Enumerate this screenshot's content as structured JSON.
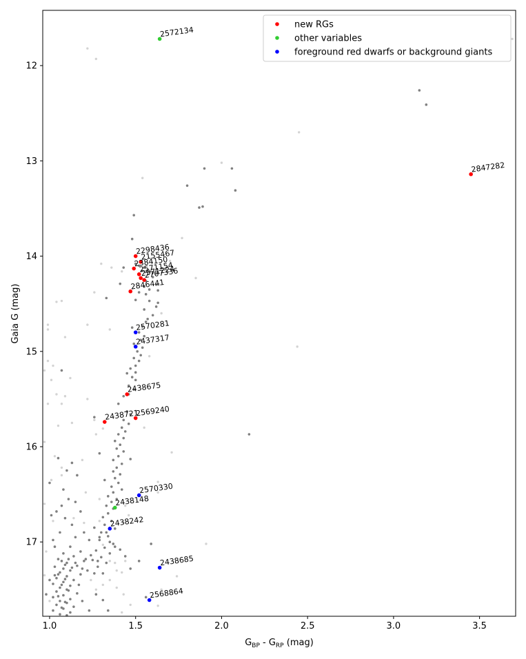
{
  "chart_data": {
    "type": "scatter",
    "xlabel_main": "G",
    "xlabel_sub1": "BP",
    "xlabel_mid": " - G",
    "xlabel_sub2": "RP",
    "xlabel_unit": " (mag)",
    "ylabel": "Gaia G (mag)",
    "xlim": [
      0.96,
      3.71
    ],
    "ylim": [
      17.78,
      11.42
    ],
    "y_inverted": true,
    "x_ticks": [
      "1.0",
      "1.5",
      "2.0",
      "2.5",
      "3.0",
      "3.5"
    ],
    "y_ticks": [
      "12",
      "13",
      "14",
      "15",
      "16",
      "17"
    ],
    "legend": {
      "placement": "top-right",
      "entries": [
        {
          "label": "new RGs",
          "color": "#ff0000"
        },
        {
          "label": "other variables",
          "color": "#32cd32"
        },
        {
          "label": "foreground red dwarfs or background giants",
          "color": "#0000ff"
        }
      ]
    },
    "background": {
      "dark_color": "#808080",
      "light_color": "#d3d3d3",
      "dark_points": [
        [
          3.15,
          12.26
        ],
        [
          3.19,
          12.41
        ],
        [
          1.9,
          13.08
        ],
        [
          2.06,
          13.08
        ],
        [
          1.8,
          13.26
        ],
        [
          2.08,
          13.31
        ],
        [
          1.87,
          13.49
        ],
        [
          1.89,
          13.48
        ],
        [
          1.49,
          13.57
        ],
        [
          1.48,
          13.82
        ],
        [
          1.43,
          14.12
        ],
        [
          1.5,
          14.08
        ],
        [
          1.52,
          14.1
        ],
        [
          1.55,
          14.12
        ],
        [
          1.58,
          14.16
        ],
        [
          1.62,
          14.18
        ],
        [
          1.6,
          14.22
        ],
        [
          1.56,
          14.26
        ],
        [
          1.62,
          14.3
        ],
        [
          1.55,
          14.32
        ],
        [
          1.58,
          14.35
        ],
        [
          1.63,
          14.36
        ],
        [
          1.41,
          14.29
        ],
        [
          1.52,
          14.38
        ],
        [
          1.56,
          14.4
        ],
        [
          1.33,
          14.44
        ],
        [
          1.5,
          14.46
        ],
        [
          1.58,
          14.47
        ],
        [
          1.63,
          14.49
        ],
        [
          1.62,
          14.53
        ],
        [
          1.55,
          14.56
        ],
        [
          1.6,
          14.62
        ],
        [
          1.57,
          14.66
        ],
        [
          1.56,
          14.69
        ],
        [
          1.54,
          14.74
        ],
        [
          1.48,
          14.75
        ],
        [
          1.52,
          14.8
        ],
        [
          1.55,
          14.84
        ],
        [
          1.53,
          14.88
        ],
        [
          1.49,
          14.92
        ],
        [
          1.54,
          14.96
        ],
        [
          1.51,
          15.0
        ],
        [
          1.53,
          15.04
        ],
        [
          1.49,
          15.07
        ],
        [
          1.52,
          15.1
        ],
        [
          1.5,
          15.15
        ],
        [
          1.47,
          15.18
        ],
        [
          1.5,
          15.22
        ],
        [
          1.45,
          15.23
        ],
        [
          1.48,
          15.27
        ],
        [
          1.5,
          15.3
        ],
        [
          1.46,
          15.36
        ],
        [
          1.49,
          15.4
        ],
        [
          1.46,
          15.45
        ],
        [
          1.43,
          15.47
        ],
        [
          1.26,
          15.69
        ],
        [
          1.4,
          15.55
        ],
        [
          1.45,
          15.63
        ],
        [
          1.47,
          15.66
        ],
        [
          1.43,
          15.72
        ],
        [
          1.46,
          15.76
        ],
        [
          1.42,
          15.8
        ],
        [
          1.44,
          15.84
        ],
        [
          1.4,
          15.87
        ],
        [
          1.43,
          15.91
        ],
        [
          1.38,
          15.94
        ],
        [
          1.41,
          15.98
        ],
        [
          1.39,
          16.02
        ],
        [
          1.43,
          16.05
        ],
        [
          1.29,
          16.07
        ],
        [
          1.4,
          16.1
        ],
        [
          1.47,
          16.13
        ],
        [
          1.37,
          16.14
        ],
        [
          1.42,
          16.18
        ],
        [
          1.39,
          16.22
        ],
        [
          1.37,
          16.26
        ],
        [
          1.41,
          16.29
        ],
        [
          1.38,
          16.33
        ],
        [
          1.32,
          16.35
        ],
        [
          1.4,
          16.38
        ],
        [
          1.36,
          16.42
        ],
        [
          1.42,
          16.45
        ],
        [
          1.37,
          16.48
        ],
        [
          1.34,
          16.52
        ],
        [
          1.39,
          16.55
        ],
        [
          1.36,
          16.58
        ],
        [
          1.33,
          16.62
        ],
        [
          1.37,
          16.65
        ],
        [
          1.34,
          16.7
        ],
        [
          1.31,
          16.74
        ],
        [
          1.36,
          16.78
        ],
        [
          1.32,
          16.82
        ],
        [
          1.38,
          16.86
        ],
        [
          1.3,
          16.9
        ],
        [
          1.34,
          16.94
        ],
        [
          1.29,
          16.98
        ],
        [
          1.37,
          17.02
        ],
        [
          1.32,
          17.06
        ],
        [
          1.27,
          17.09
        ],
        [
          1.35,
          17.12
        ],
        [
          1.3,
          17.16
        ],
        [
          1.25,
          17.19
        ],
        [
          1.33,
          17.22
        ],
        [
          1.28,
          17.26
        ],
        [
          1.22,
          17.3
        ],
        [
          1.31,
          17.33
        ],
        [
          1.59,
          17.02
        ],
        [
          1.13,
          16.17
        ],
        [
          1.1,
          16.25
        ],
        [
          1.05,
          16.12
        ],
        [
          1.07,
          15.2
        ],
        [
          1.08,
          16.45
        ],
        [
          1.11,
          16.55
        ],
        [
          1.04,
          16.68
        ],
        [
          1.09,
          16.75
        ],
        [
          1.13,
          16.82
        ],
        [
          1.06,
          16.9
        ],
        [
          2.16,
          15.87
        ],
        [
          1.15,
          16.95
        ],
        [
          1.02,
          16.98
        ],
        [
          1.12,
          17.05
        ],
        [
          1.18,
          17.1
        ],
        [
          1.08,
          17.12
        ],
        [
          1.14,
          17.15
        ],
        [
          1.05,
          17.18
        ],
        [
          1.2,
          17.2
        ],
        [
          1.1,
          17.22
        ],
        [
          1.16,
          17.25
        ],
        [
          1.03,
          17.26
        ],
        [
          1.08,
          17.28
        ],
        [
          1.12,
          17.3
        ],
        [
          1.06,
          17.32
        ],
        [
          1.18,
          17.34
        ],
        [
          1.1,
          17.36
        ],
        [
          1.04,
          17.38
        ],
        [
          1.14,
          17.4
        ],
        [
          1.08,
          17.42
        ],
        [
          1.02,
          17.44
        ],
        [
          1.12,
          17.46
        ],
        [
          1.06,
          17.48
        ],
        [
          1.1,
          17.5
        ],
        [
          1.04,
          17.52
        ],
        [
          1.16,
          17.54
        ],
        [
          1.08,
          17.56
        ],
        [
          1.02,
          17.58
        ],
        [
          1.12,
          17.6
        ],
        [
          1.06,
          17.62
        ],
        [
          1.1,
          17.64
        ],
        [
          1.04,
          17.66
        ],
        [
          1.14,
          17.68
        ],
        [
          1.08,
          17.7
        ],
        [
          1.02,
          17.72
        ],
        [
          1.12,
          17.74
        ],
        [
          1.06,
          17.76
        ],
        [
          1.1,
          17.77
        ],
        [
          1.07,
          17.2
        ],
        [
          1.11,
          17.18
        ],
        [
          1.09,
          17.24
        ],
        [
          1.13,
          17.27
        ],
        [
          1.05,
          17.34
        ],
        [
          1.09,
          17.39
        ],
        [
          1.07,
          17.45
        ],
        [
          1.11,
          17.51
        ],
        [
          1.05,
          17.57
        ],
        [
          1.09,
          17.63
        ],
        [
          1.07,
          17.69
        ],
        [
          1.03,
          17.35
        ],
        [
          1.15,
          17.22
        ],
        [
          1.19,
          17.28
        ],
        [
          1.21,
          17.18
        ],
        [
          1.24,
          17.14
        ],
        [
          1.28,
          17.2
        ],
        [
          1.26,
          17.33
        ],
        [
          1.17,
          17.45
        ],
        [
          1.19,
          17.62
        ],
        [
          1.23,
          17.72
        ],
        [
          1.27,
          17.55
        ],
        [
          1.31,
          17.61
        ],
        [
          1.34,
          17.72
        ],
        [
          1.0,
          17.4
        ],
        [
          0.98,
          17.55
        ],
        [
          1.0,
          16.38
        ],
        [
          1.01,
          16.72
        ],
        [
          1.03,
          17.05
        ],
        [
          1.16,
          16.3
        ],
        [
          1.2,
          16.9
        ],
        [
          1.23,
          16.98
        ],
        [
          1.26,
          16.85
        ],
        [
          1.29,
          16.95
        ],
        [
          1.33,
          16.9
        ],
        [
          1.35,
          17.0
        ],
        [
          1.38,
          17.05
        ],
        [
          1.41,
          17.08
        ],
        [
          1.44,
          17.15
        ],
        [
          1.47,
          17.28
        ],
        [
          1.52,
          17.2
        ],
        [
          1.56,
          17.58
        ],
        [
          1.07,
          16.62
        ],
        [
          1.15,
          16.58
        ],
        [
          1.18,
          16.68
        ]
      ],
      "light_points": [
        [
          1.22,
          11.82
        ],
        [
          1.27,
          11.93
        ],
        [
          3.69,
          11.72
        ],
        [
          2.45,
          12.7
        ],
        [
          2.0,
          13.02
        ],
        [
          1.54,
          13.18
        ],
        [
          1.77,
          13.81
        ],
        [
          1.3,
          14.08
        ],
        [
          1.36,
          14.12
        ],
        [
          1.42,
          14.16
        ],
        [
          1.85,
          14.23
        ],
        [
          1.7,
          14.05
        ],
        [
          1.64,
          14.3
        ],
        [
          1.26,
          14.38
        ],
        [
          1.04,
          14.48
        ],
        [
          1.07,
          14.47
        ],
        [
          1.65,
          14.6
        ],
        [
          1.22,
          14.72
        ],
        [
          0.99,
          14.72
        ],
        [
          0.99,
          14.77
        ],
        [
          1.35,
          14.77
        ],
        [
          1.09,
          14.85
        ],
        [
          2.44,
          14.95
        ],
        [
          1.58,
          15.05
        ],
        [
          0.99,
          15.1
        ],
        [
          1.02,
          15.15
        ],
        [
          0.97,
          15.2
        ],
        [
          1.01,
          15.3
        ],
        [
          1.12,
          15.28
        ],
        [
          1.04,
          15.45
        ],
        [
          1.09,
          15.47
        ],
        [
          1.22,
          15.5
        ],
        [
          1.07,
          15.55
        ],
        [
          0.99,
          15.55
        ],
        [
          1.05,
          15.78
        ],
        [
          1.13,
          15.75
        ],
        [
          1.26,
          15.72
        ],
        [
          1.27,
          15.87
        ],
        [
          1.31,
          15.81
        ],
        [
          1.55,
          15.8
        ],
        [
          0.97,
          15.95
        ],
        [
          1.03,
          16.1
        ],
        [
          1.07,
          16.22
        ],
        [
          1.19,
          16.14
        ],
        [
          1.71,
          16.06
        ],
        [
          1.63,
          16.37
        ],
        [
          1.01,
          16.35
        ],
        [
          1.07,
          16.3
        ],
        [
          1.21,
          16.48
        ],
        [
          1.29,
          16.55
        ],
        [
          1.63,
          16.48
        ],
        [
          0.97,
          16.6
        ],
        [
          1.02,
          16.78
        ],
        [
          1.14,
          16.75
        ],
        [
          1.2,
          16.8
        ],
        [
          1.29,
          16.78
        ],
        [
          1.44,
          16.62
        ],
        [
          1.91,
          17.02
        ],
        [
          0.98,
          17.1
        ],
        [
          1.24,
          17.4
        ],
        [
          1.27,
          17.5
        ],
        [
          1.31,
          17.45
        ],
        [
          1.35,
          17.4
        ],
        [
          1.39,
          17.48
        ],
        [
          1.43,
          17.55
        ],
        [
          1.47,
          17.66
        ],
        [
          1.42,
          17.74
        ],
        [
          1.65,
          17.5
        ],
        [
          1.74,
          17.36
        ],
        [
          1.63,
          17.67
        ],
        [
          1.0,
          17.62
        ],
        [
          0.97,
          17.35
        ],
        [
          1.35,
          17.2
        ],
        [
          1.39,
          17.3
        ],
        [
          1.42,
          17.32
        ],
        [
          1.38,
          17.22
        ],
        [
          1.44,
          17.2
        ],
        [
          1.31,
          17.03
        ],
        [
          1.43,
          16.8
        ],
        [
          1.46,
          16.72
        ]
      ]
    },
    "highlighted": [
      {
        "label": "2572134",
        "x": 1.64,
        "y": 11.72,
        "group": "other variables"
      },
      {
        "label": "2847282",
        "x": 3.45,
        "y": 13.14,
        "group": "new RGs"
      },
      {
        "label": "2298436",
        "x": 1.5,
        "y": 14.0,
        "group": "new RGs"
      },
      {
        "label": "2155467",
        "x": 1.53,
        "y": 14.06,
        "group": "new RGs"
      },
      {
        "label": "2384150",
        "x": 1.49,
        "y": 14.13,
        "group": "new RGs"
      },
      {
        "label": "2571154",
        "x": 1.52,
        "y": 14.19,
        "group": "new RGs"
      },
      {
        "label": "2571224",
        "x": 1.53,
        "y": 14.23,
        "group": "new RGs"
      },
      {
        "label": "2707336",
        "x": 1.55,
        "y": 14.25,
        "group": "new RGs"
      },
      {
        "label": "2846441",
        "x": 1.47,
        "y": 14.37,
        "group": "new RGs"
      },
      {
        "label": "2570281",
        "x": 1.5,
        "y": 14.8,
        "group": "foreground red dwarfs or background giants"
      },
      {
        "label": "2437317",
        "x": 1.5,
        "y": 14.95,
        "group": "foreground red dwarfs or background giants"
      },
      {
        "label": "2438675",
        "x": 1.45,
        "y": 15.45,
        "group": "new RGs"
      },
      {
        "label": "2438721",
        "x": 1.32,
        "y": 15.74,
        "group": "new RGs"
      },
      {
        "label": "2569240",
        "x": 1.5,
        "y": 15.7,
        "group": "new RGs"
      },
      {
        "label": "2570330",
        "x": 1.52,
        "y": 16.51,
        "group": "foreground red dwarfs or background giants"
      },
      {
        "label": "2438148",
        "x": 1.38,
        "y": 16.64,
        "group": "other variables"
      },
      {
        "label": "2438242",
        "x": 1.35,
        "y": 16.86,
        "group": "foreground red dwarfs or background giants"
      },
      {
        "label": "2438685",
        "x": 1.64,
        "y": 17.27,
        "group": "foreground red dwarfs or background giants"
      },
      {
        "label": "2568864",
        "x": 1.58,
        "y": 17.61,
        "group": "foreground red dwarfs or background giants"
      }
    ]
  }
}
